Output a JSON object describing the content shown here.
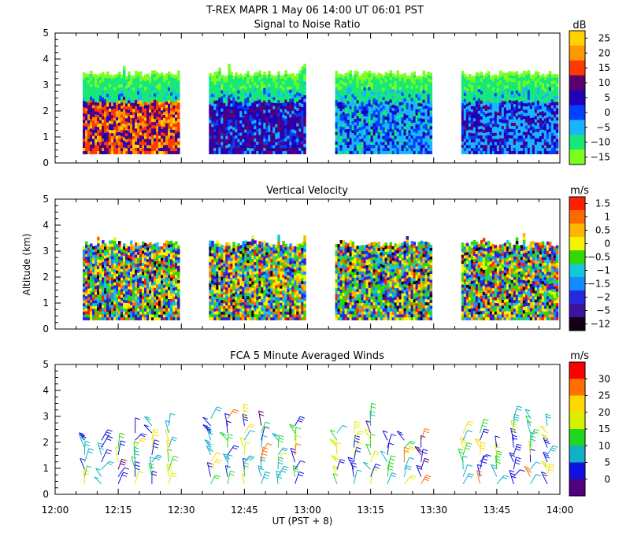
{
  "header": {
    "title": "T-REX   MAPR   1 May 06   14:00 UT   06:01   PST"
  },
  "chart_data": [
    {
      "type": "heatmap",
      "title": "Signal to Noise Ratio",
      "ylabel": "",
      "ylim": [
        0,
        5
      ],
      "yticks": [
        "0",
        "1",
        "2",
        "3",
        "4",
        "5"
      ],
      "colorbar": {
        "unit": "dB",
        "levels": [
          "25",
          "20",
          "15",
          "10",
          "5",
          "0",
          "−5",
          "−10",
          "−15"
        ],
        "colors": [
          "#ffd200",
          "#ff9800",
          "#ff3a00",
          "#5a006e",
          "#2200b8",
          "#0040ff",
          "#1cb4ff",
          "#18e878",
          "#7cff20"
        ]
      },
      "data_blocks": [
        {
          "start": "12:06",
          "end": "12:29"
        },
        {
          "start": "12:36",
          "end": "12:59"
        },
        {
          "start": "13:06",
          "end": "13:29"
        },
        {
          "start": "13:36",
          "end": "13:59"
        }
      ]
    },
    {
      "type": "heatmap",
      "title": "Vertical Velocity",
      "ylabel": "Altitude (km)",
      "ylim": [
        0,
        5
      ],
      "yticks": [
        "0",
        "1",
        "2",
        "3",
        "4",
        "5"
      ],
      "colorbar": {
        "unit": "m/s",
        "levels": [
          "1.5",
          "1",
          "0.5",
          "0",
          "−0.5",
          "−1",
          "−1.5",
          "−2",
          "−5",
          "−12"
        ],
        "colors": [
          "#ff1e00",
          "#ff6a00",
          "#ffb400",
          "#f4f400",
          "#32d800",
          "#14c8d8",
          "#148cff",
          "#2828e0",
          "#3c14a0",
          "#140014"
        ]
      },
      "data_blocks": [
        {
          "start": "12:06",
          "end": "12:29"
        },
        {
          "start": "12:36",
          "end": "12:59"
        },
        {
          "start": "13:06",
          "end": "13:29"
        },
        {
          "start": "13:36",
          "end": "13:59"
        }
      ]
    },
    {
      "type": "scatter",
      "title": "FCA 5 Minute Averaged Winds",
      "xlabel": "UT  (PST + 8)",
      "ylabel": "",
      "ylim": [
        0,
        5
      ],
      "yticks": [
        "0",
        "1",
        "2",
        "3",
        "4",
        "5"
      ],
      "x_tick_labels": [
        "12:00",
        "12:15",
        "12:30",
        "12:45",
        "13:00",
        "13:15",
        "13:30",
        "13:45",
        "14:00"
      ],
      "xlim": [
        "12:00",
        "14:00"
      ],
      "colorbar": {
        "unit": "m/s",
        "levels": [
          "30",
          "25",
          "20",
          "15",
          "10",
          "5",
          "0"
        ],
        "colors": [
          "#ff0000",
          "#ff7000",
          "#ffd800",
          "#d8f000",
          "#20d820",
          "#10b0c8",
          "#1010e0",
          "#500080"
        ]
      },
      "barb_columns": [
        "12:07",
        "12:11",
        "12:15",
        "12:19",
        "12:23",
        "12:27",
        "12:37",
        "12:41",
        "12:45",
        "12:49",
        "12:53",
        "12:57",
        "13:07",
        "13:11",
        "13:15",
        "13:19",
        "13:23",
        "13:27",
        "13:37",
        "13:41",
        "13:45",
        "13:49",
        "13:53",
        "13:57"
      ]
    }
  ]
}
